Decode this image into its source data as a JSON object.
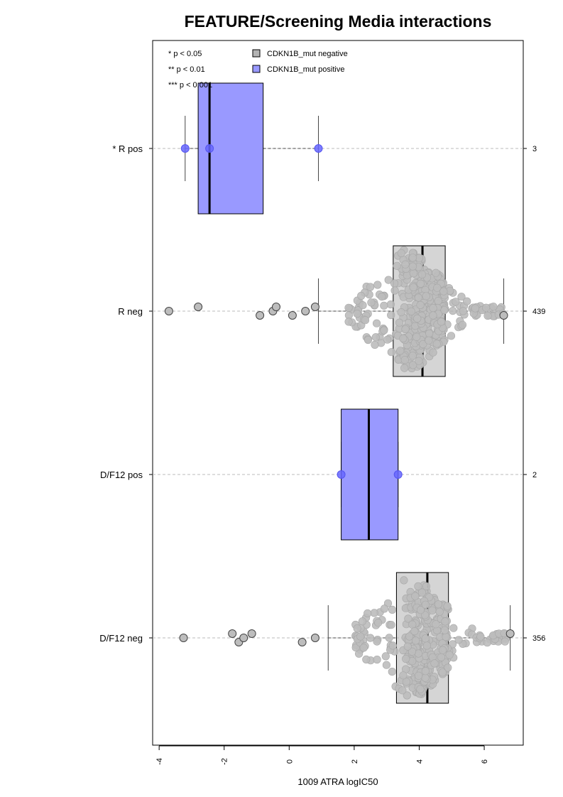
{
  "chart_data": {
    "type": "boxplot",
    "title": "FEATURE/Screening Media interactions",
    "xlabel": "1009 ATRA logIC50",
    "xlim": [
      -4.2,
      7.2
    ],
    "x_ticks": [
      -4,
      -2,
      0,
      2,
      4,
      6
    ],
    "x_tick_labels": [
      "-4",
      "-2",
      "0",
      "2",
      "4",
      "6"
    ],
    "grid": "horizontal dashed",
    "legend": {
      "position": "top-left",
      "significance": [
        "* p < 0.05",
        "** p < 0.01",
        "*** p < 0.001"
      ],
      "entries": [
        {
          "label": "CDKN1B_mut negative",
          "color": "#b3b3b3"
        },
        {
          "label": "CDKN1B_mut positive",
          "color": "#9999ff"
        }
      ]
    },
    "groups": [
      {
        "label": "* R pos",
        "n": "3",
        "color": "#9999ff",
        "stats": {
          "whisker_low": -3.2,
          "q1": -2.8,
          "median": -2.45,
          "q3": -0.8,
          "whisker_high": 0.9
        },
        "points": [
          -3.2,
          -2.45,
          0.9
        ]
      },
      {
        "label": "R neg",
        "n": "439",
        "color": "#b3b3b3",
        "stats": {
          "whisker_low": 0.9,
          "q1": 3.2,
          "median": 4.1,
          "q3": 4.8,
          "whisker_high": 6.6
        },
        "outliers": [
          -3.7,
          -2.8,
          -0.9,
          -0.5,
          -0.4,
          0.1,
          0.5,
          0.8,
          6.6
        ],
        "n_points": 439
      },
      {
        "label": "D/F12 pos",
        "n": "2",
        "color": "#9999ff",
        "stats": {
          "whisker_low": 1.6,
          "q1": 1.6,
          "median": 2.45,
          "q3": 3.35,
          "whisker_high": 3.35
        },
        "points": [
          1.6,
          3.35
        ]
      },
      {
        "label": "D/F12 neg",
        "n": "356",
        "color": "#b3b3b3",
        "stats": {
          "whisker_low": 1.2,
          "q1": 3.3,
          "median": 4.25,
          "q3": 4.9,
          "whisker_high": 6.8
        },
        "outliers": [
          -3.25,
          -1.75,
          -1.55,
          -1.4,
          -1.15,
          0.4,
          0.8,
          6.8
        ],
        "n_points": 356
      }
    ]
  }
}
